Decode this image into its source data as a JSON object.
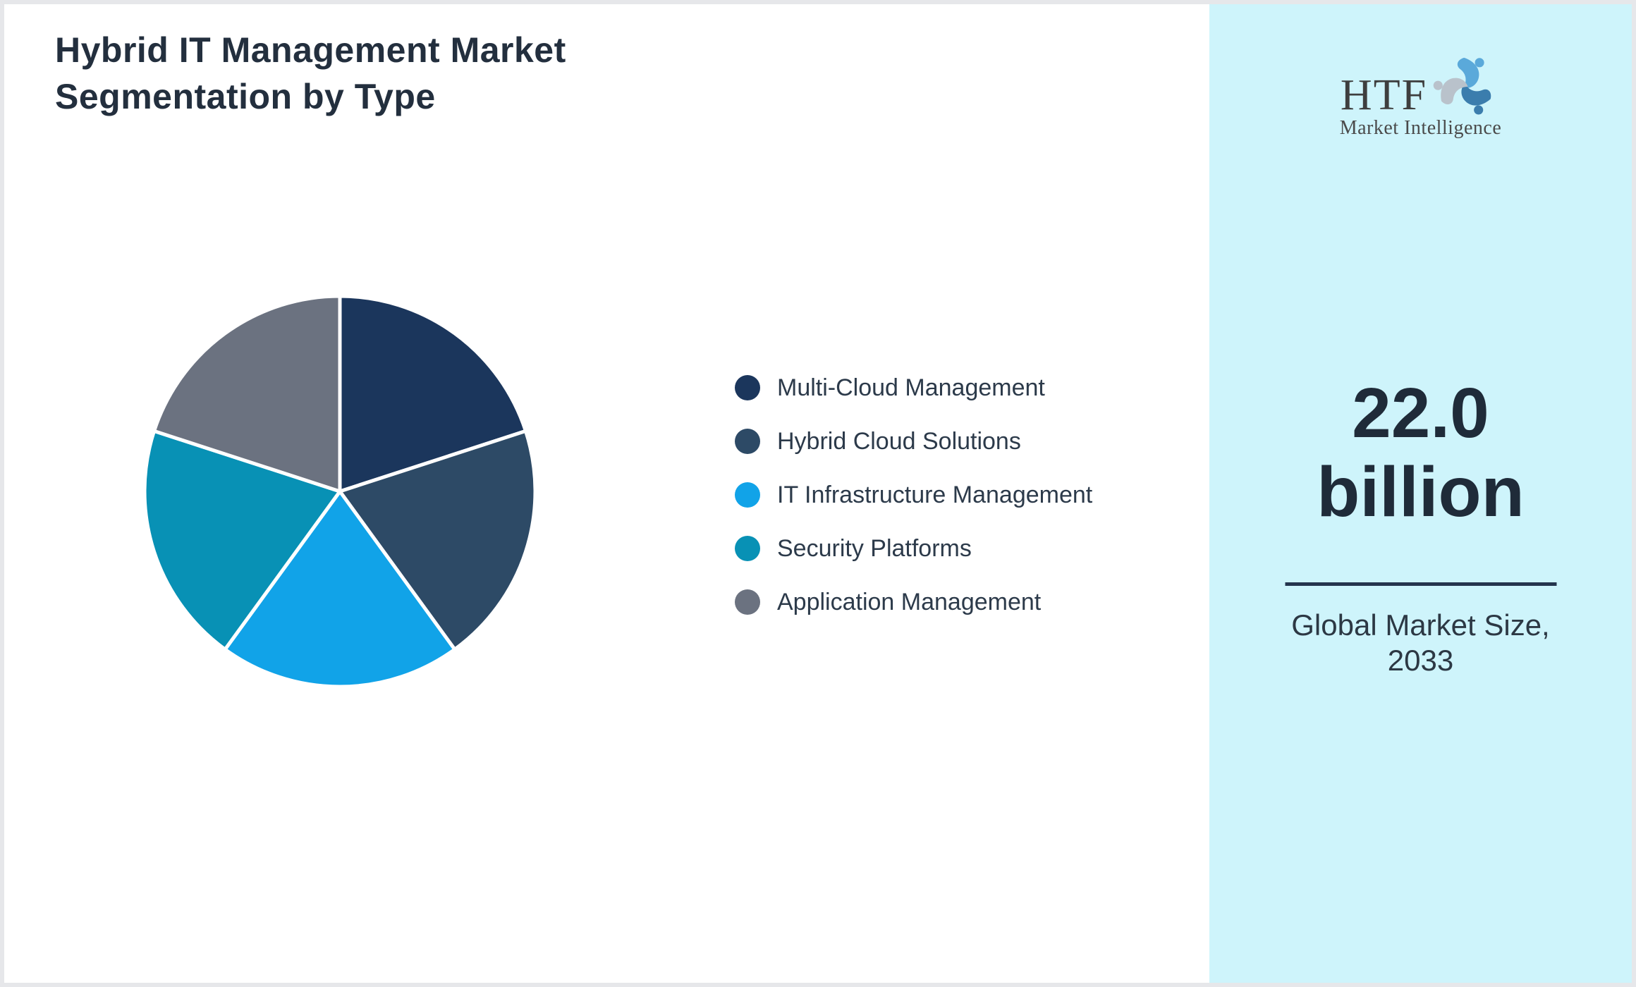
{
  "title": {
    "line1": "Hybrid IT Management Market",
    "line2": "Segmentation by Type"
  },
  "chart_data": {
    "type": "pie",
    "title": "Hybrid IT Management Market Segmentation by Type",
    "categories": [
      "Multi-Cloud Management",
      "Hybrid Cloud Solutions",
      "IT Infrastructure Management",
      "Security Platforms",
      "Application Management"
    ],
    "values": [
      20,
      20,
      20,
      20,
      20
    ],
    "unit": "percent share (equal slices, estimated from arc angles)",
    "colors": [
      "#1b365c",
      "#2d4a66",
      "#11a3e8",
      "#0891b5",
      "#6b7280"
    ],
    "start_angle_deg": 0,
    "direction": "clockwise",
    "slice_gap_color": "#ffffff",
    "labels_on_slices": false,
    "legend_position": "right-of-chart"
  },
  "legend": {
    "items": [
      {
        "label": "Multi-Cloud Management",
        "color": "#1b365c"
      },
      {
        "label": "Hybrid Cloud Solutions",
        "color": "#2d4a66"
      },
      {
        "label": "IT Infrastructure Management",
        "color": "#11a3e8"
      },
      {
        "label": "Security Platforms",
        "color": "#0891b5"
      },
      {
        "label": "Application Management",
        "color": "#6b7280"
      }
    ]
  },
  "sidebar": {
    "background_color": "#cef4fb",
    "logo": {
      "brand": "HTF",
      "tagline": "Market Intelligence",
      "swirl_colors": [
        "#5aa9da",
        "#3b7dad",
        "#b9c2cb"
      ]
    },
    "stat": {
      "line1": "22.0",
      "line2": "billion"
    },
    "caption": {
      "line1": "Global Market Size,",
      "line2": "2033"
    }
  },
  "colors": {
    "page_background": "#ffffff",
    "page_border": "#e6e7ea",
    "title_text": "#232f3e",
    "legend_text": "#2c3a4a",
    "stat_text": "#1f2b39",
    "caption_text": "#2c3844",
    "divider": "#24344d"
  }
}
